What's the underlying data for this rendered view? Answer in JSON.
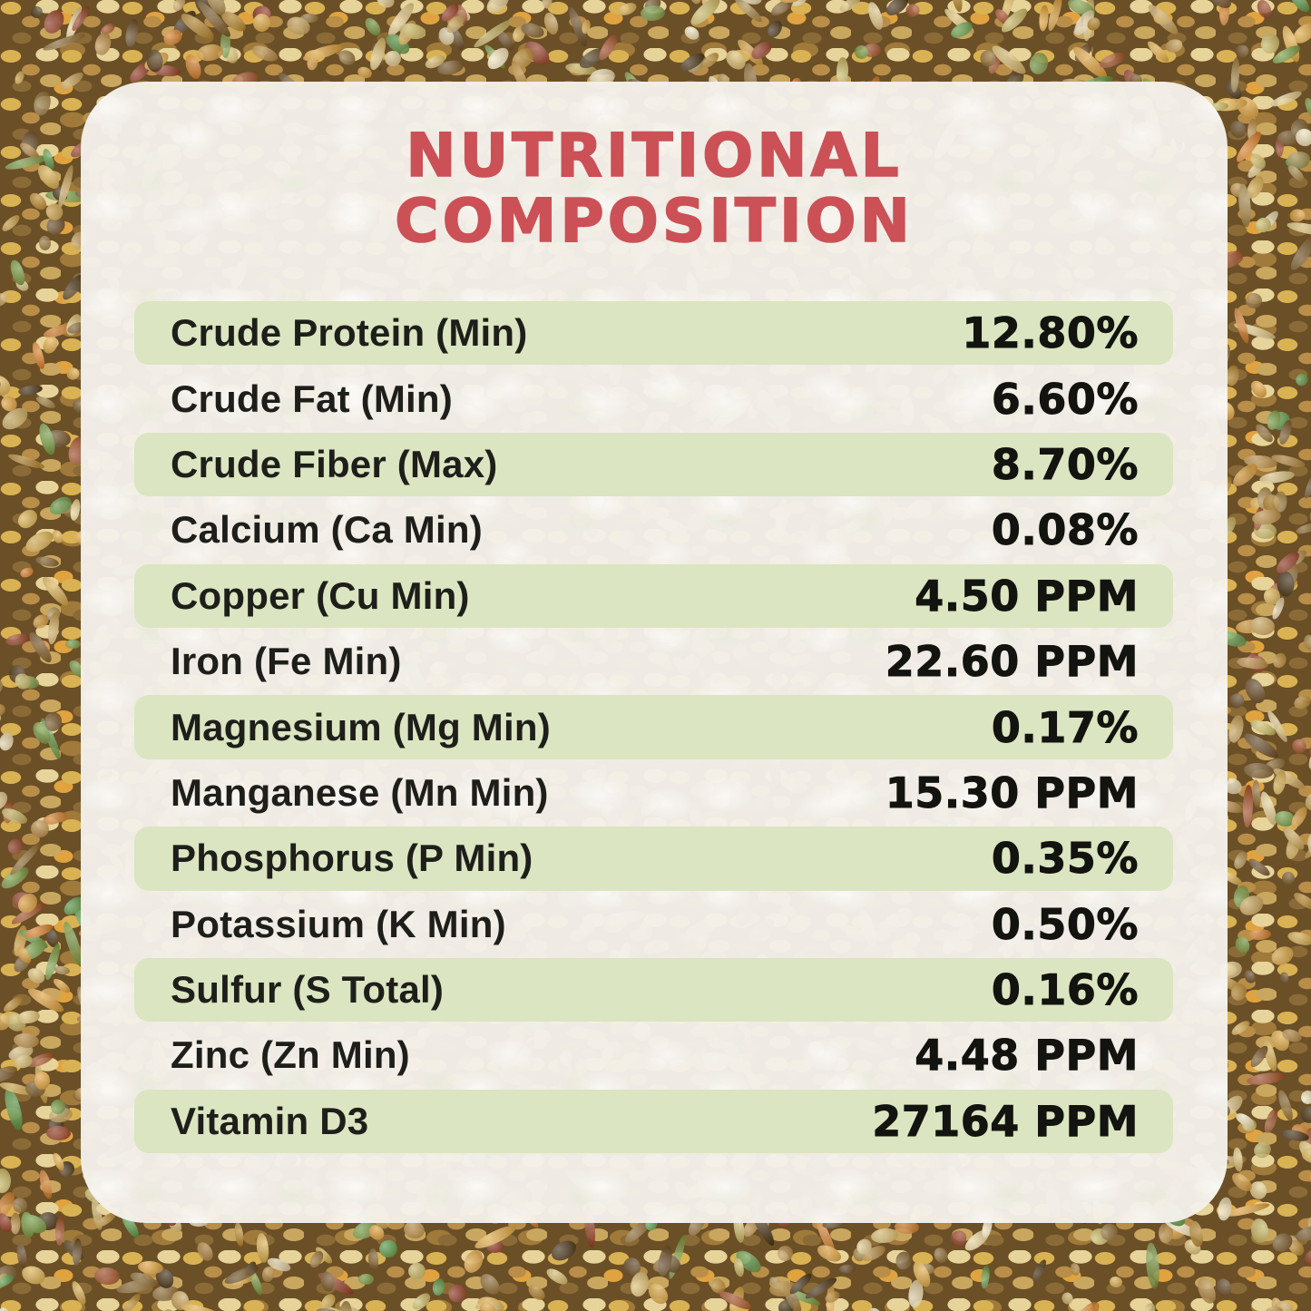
{
  "theme": {
    "accent_red": "#cb5157",
    "row_highlight_green": "#dbe5c1",
    "card_background": "#f4f1ea",
    "text_color": "#1e1e1a"
  },
  "background": {
    "palette": [
      "#c9a75f",
      "#b98e49",
      "#dcc379",
      "#e7d49a",
      "#8a6a36",
      "#6f5228",
      "#e0a33f",
      "#d97f2a",
      "#a04a28",
      "#8f3525",
      "#6f9c44",
      "#4f9a4a",
      "#5d4425",
      "#3a2a14",
      "#c9bd6a",
      "#efe5c2",
      "#b5862e",
      "#e3b04b",
      "#d9b254",
      "#a58a4e"
    ]
  },
  "card": {
    "title_lines": [
      "NUTRITIONAL",
      "COMPOSITION"
    ],
    "table": {
      "rows": [
        {
          "label": "Crude Protein (Min)",
          "value": "12.80%"
        },
        {
          "label": "Crude Fat (Min)",
          "value": "6.60%"
        },
        {
          "label": "Crude Fiber (Max)",
          "value": "8.70%"
        },
        {
          "label": "Calcium (Ca Min)",
          "value": "0.08%"
        },
        {
          "label": "Copper (Cu Min)",
          "value": "4.50 PPM"
        },
        {
          "label": "Iron (Fe Min)",
          "value": "22.60 PPM"
        },
        {
          "label": "Magnesium (Mg Min)",
          "value": "0.17%"
        },
        {
          "label": "Manganese (Mn Min)",
          "value": "15.30 PPM"
        },
        {
          "label": "Phosphorus (P Min)",
          "value": "0.35%"
        },
        {
          "label": "Potassium (K Min)",
          "value": "0.50%"
        },
        {
          "label": "Sulfur (S Total)",
          "value": "0.16%"
        },
        {
          "label": "Zinc (Zn Min)",
          "value": "4.48 PPM"
        },
        {
          "label": "Vitamin D3",
          "value": "27164 PPM"
        }
      ]
    }
  }
}
